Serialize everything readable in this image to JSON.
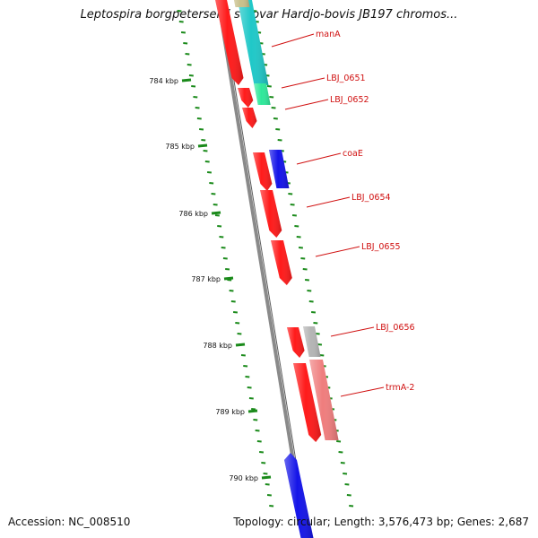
{
  "title": "Leptospira borgpetersenii serovar Hardjo-bovis JB197 chromos...",
  "footer": {
    "accession": "Accession: NC_008510",
    "stats": "Topology: circular; Length: 3,576,473 bp; Genes: 2,687"
  },
  "colors": {
    "gene_red": "#ff1a1a",
    "gene_blue": "#1414e8",
    "gene_cyan": "#1fc8c8",
    "gene_teal": "#2ee89a",
    "gene_grey": "#b4b4b4",
    "gene_pink": "#ef7d7d",
    "gene_olive": "#c8c08a",
    "backbone": "#8a8a8a",
    "tick_green": "#1a8a1a",
    "label_red": "#d01010"
  },
  "scale_labels": [
    {
      "kbp": 784,
      "text": "784 kbp"
    },
    {
      "kbp": 785,
      "text": "785 kbp"
    },
    {
      "kbp": 786,
      "text": "786 kbp"
    },
    {
      "kbp": 787,
      "text": "787 kbp"
    },
    {
      "kbp": 788,
      "text": "788 kbp"
    },
    {
      "kbp": 789,
      "text": "789 kbp"
    },
    {
      "kbp": 790,
      "text": "790 kbp"
    }
  ],
  "gene_labels": [
    {
      "text": "manA"
    },
    {
      "text": "LBJ_0651"
    },
    {
      "text": "LBJ_0652"
    },
    {
      "text": "coaE"
    },
    {
      "text": "LBJ_0654"
    },
    {
      "text": "LBJ_0655"
    },
    {
      "text": "LBJ_0656"
    },
    {
      "text": "trmA-2"
    }
  ]
}
